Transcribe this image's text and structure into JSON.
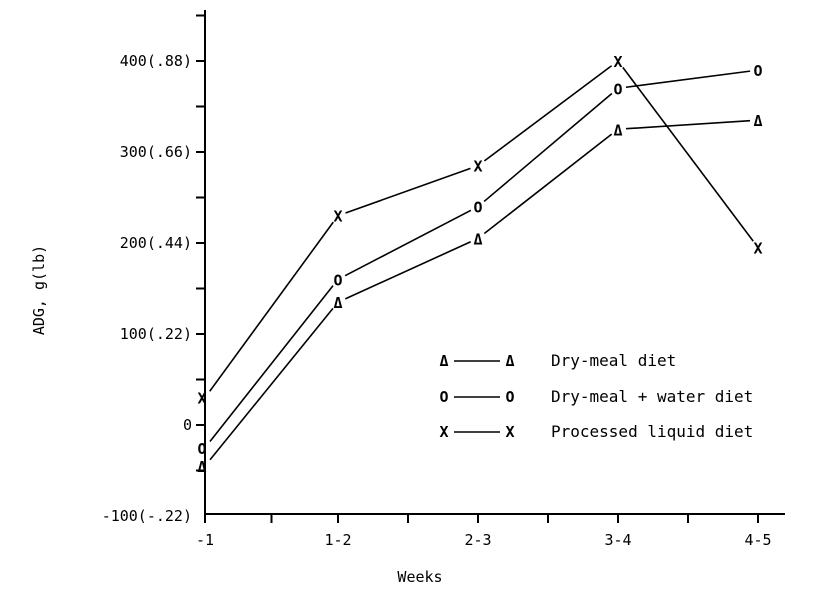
{
  "chart_data": {
    "type": "line",
    "title": "",
    "xlabel": "Weeks",
    "ylabel": "ADG, g(lb)",
    "categories": [
      "-1",
      "1-2",
      "2-3",
      "3-4",
      "4-5"
    ],
    "ylim": [
      -100,
      450
    ],
    "y_ticks": [
      {
        "value": 400,
        "label": "400(.88)"
      },
      {
        "value": 300,
        "label": "300(.66)"
      },
      {
        "value": 200,
        "label": "200(.44)"
      },
      {
        "value": 100,
        "label": "100(.22)"
      },
      {
        "value": 0,
        "label": "0"
      },
      {
        "value": -100,
        "label": "-100(-.22)"
      }
    ],
    "grid": false,
    "legend_position": "bottom-right",
    "series": [
      {
        "name": "Dry-meal diet",
        "marker": "Δ",
        "values": [
          -45,
          135,
          205,
          325,
          335
        ]
      },
      {
        "name": "Dry-meal + water diet",
        "marker": "O",
        "values": [
          -25,
          160,
          240,
          370,
          390
        ]
      },
      {
        "name": "Processed liquid diet",
        "marker": "X",
        "values": [
          30,
          230,
          285,
          400,
          195
        ]
      }
    ]
  }
}
